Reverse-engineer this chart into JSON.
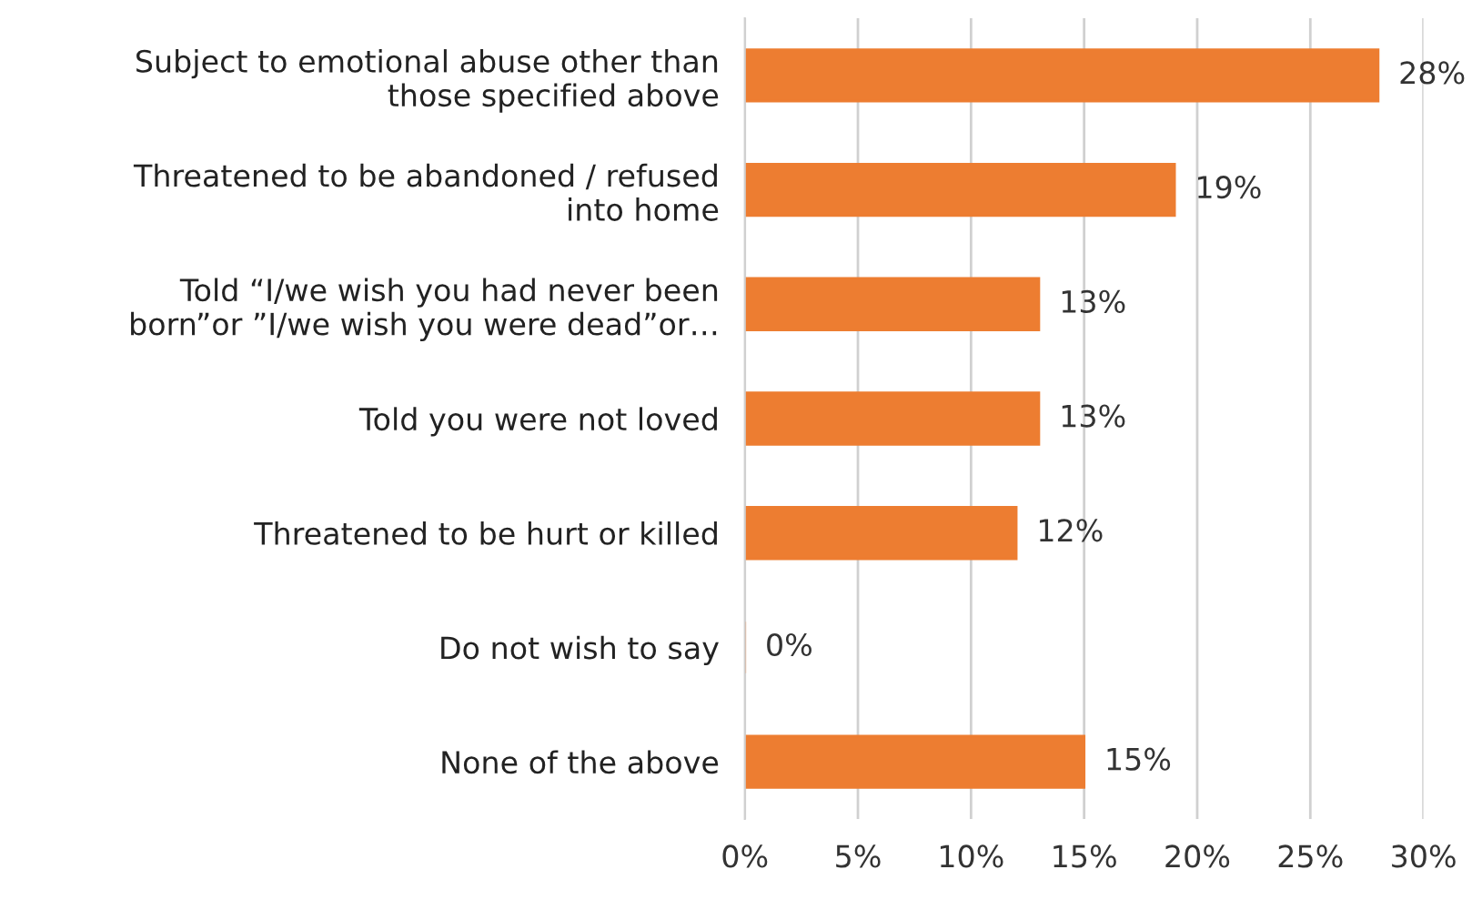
{
  "chart_data": {
    "type": "bar",
    "orientation": "horizontal",
    "categories": [
      "Subject to emotional abuse other than\nthose specified above",
      "Threatened to be abandoned / refused\ninto home",
      "Told “I/we wish you had never been\nborn”or ”I/we wish you were dead”or…",
      "Told you were not loved",
      "Threatened to be hurt or killed",
      "Do not wish to say",
      "None of the above"
    ],
    "values": [
      28,
      19,
      13,
      13,
      12,
      0,
      15
    ],
    "value_labels": [
      "28%",
      "19%",
      "13%",
      "13%",
      "12%",
      "0%",
      "15%"
    ],
    "color": "#ed7d31",
    "xlim": [
      0,
      30
    ],
    "xticks": [
      {
        "value": 0,
        "label": "0%"
      },
      {
        "value": 5,
        "label": "5%"
      },
      {
        "value": 10,
        "label": "10%"
      },
      {
        "value": 15,
        "label": "15%"
      },
      {
        "value": 20,
        "label": "20%"
      },
      {
        "value": 25,
        "label": "25%"
      },
      {
        "value": 30,
        "label": "30%"
      }
    ],
    "grid": "x"
  }
}
